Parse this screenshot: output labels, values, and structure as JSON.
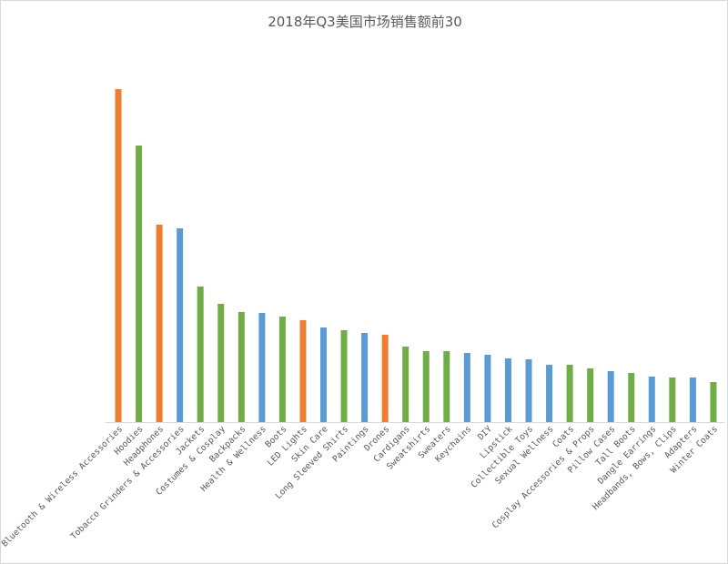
{
  "chart_data": {
    "type": "bar",
    "title": "2018年Q3美国市场销售额前30",
    "xlabel": "",
    "ylabel": "",
    "y_axis_shown": false,
    "grid": false,
    "legend": "none",
    "ylim": [
      0,
      370
    ],
    "categories": [
      "Bluetooth & Wireless Accessories",
      "Hoodies",
      "Headphones",
      "Tobacco Grinders & Accessories",
      "Jackets",
      "Costumes & Cosplay",
      "Backpacks",
      "Health & Wellness",
      "Boots",
      "LED Lights",
      "Skin Care",
      "Long Sleeved Shirts",
      "Paintings",
      "Drones",
      "Cardigans",
      "Sweatshirts",
      "Sweaters",
      "Keychains",
      "DIY",
      "Lipstick",
      "Collectible Toys",
      "Sexual Wellness",
      "Coats",
      "Cosplay Accessories & Props",
      "Pillow Cases",
      "Tall Boots",
      "Dangle Earrings",
      "Headbands, Bows, Clips",
      "Adapters",
      "Winter Coats"
    ],
    "values": [
      366,
      304,
      217,
      213,
      149,
      130,
      121,
      120,
      116,
      112,
      104,
      101,
      98,
      96,
      83,
      78,
      78,
      76,
      74,
      70,
      69,
      63,
      63,
      59,
      56,
      54,
      50,
      49,
      49,
      44
    ],
    "bar_colors": [
      "#ED7D31",
      "#70AD47",
      "#ED7D31",
      "#5B9BD5",
      "#70AD47",
      "#70AD47",
      "#70AD47",
      "#5B9BD5",
      "#70AD47",
      "#ED7D31",
      "#5B9BD5",
      "#70AD47",
      "#5B9BD5",
      "#ED7D31",
      "#70AD47",
      "#70AD47",
      "#70AD47",
      "#5B9BD5",
      "#5B9BD5",
      "#5B9BD5",
      "#5B9BD5",
      "#5B9BD5",
      "#70AD47",
      "#70AD47",
      "#5B9BD5",
      "#70AD47",
      "#5B9BD5",
      "#70AD47",
      "#5B9BD5",
      "#70AD47"
    ],
    "axis_color": "#D9D9D9"
  }
}
